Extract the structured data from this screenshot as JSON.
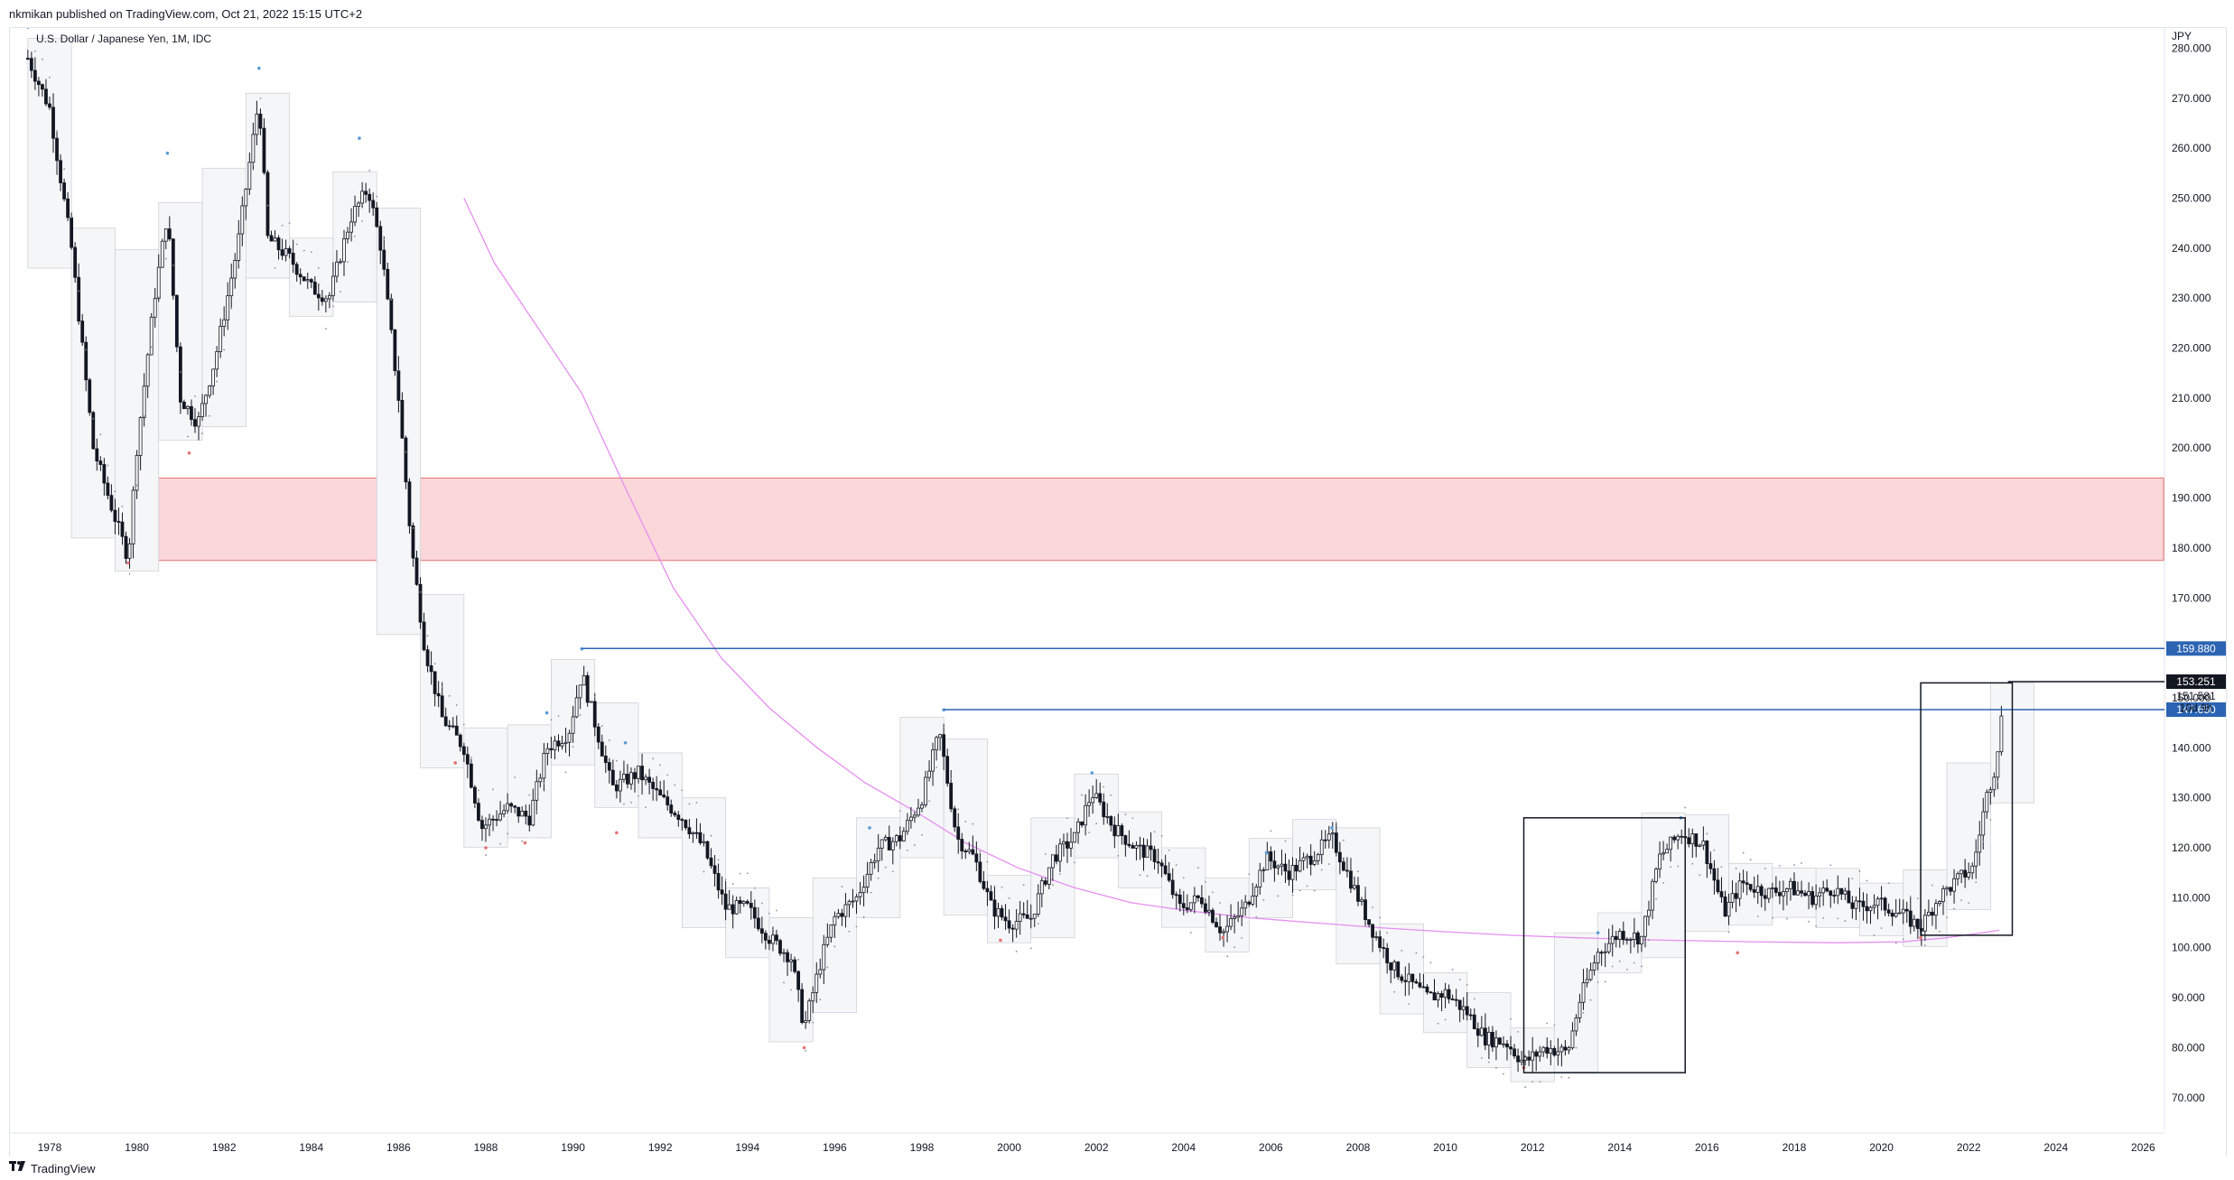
{
  "header": {
    "published": "nkmikan published on TradingView.com, Oct 21, 2022 15:15 UTC+2"
  },
  "chart_data": {
    "type": "candlestick",
    "legend": "U.S. Dollar / Japanese Yen, 1M, IDC",
    "currency": "JPY",
    "xlim": [
      1977.4,
      2026.4
    ],
    "ylim": [
      64,
      282
    ],
    "x_ticks": [
      "1978",
      "1980",
      "1982",
      "1984",
      "1986",
      "1988",
      "1990",
      "1992",
      "1994",
      "1996",
      "1998",
      "2000",
      "2002",
      "2004",
      "2006",
      "2008",
      "2010",
      "2012",
      "2014",
      "2016",
      "2018",
      "2020",
      "2022",
      "2024",
      "2026"
    ],
    "y_ticks": [
      "70.000",
      "80.000",
      "90.000",
      "100.000",
      "110.000",
      "120.000",
      "130.000",
      "140.000",
      "150.000",
      "160.000",
      "170.000",
      "180.000",
      "190.000",
      "200.000",
      "210.000",
      "220.000",
      "230.000",
      "240.000",
      "250.000",
      "260.000",
      "270.000",
      "280.000"
    ],
    "close_path": [
      [
        1977.5,
        278
      ],
      [
        1978.0,
        268
      ],
      [
        1978.5,
        240
      ],
      [
        1979.0,
        200
      ],
      [
        1979.5,
        186
      ],
      [
        1979.8,
        178
      ],
      [
        1980.0,
        200
      ],
      [
        1980.4,
        230
      ],
      [
        1980.7,
        247
      ],
      [
        1981.0,
        210
      ],
      [
        1981.4,
        205
      ],
      [
        1981.8,
        218
      ],
      [
        1982.3,
        240
      ],
      [
        1982.8,
        270
      ],
      [
        1983.0,
        242
      ],
      [
        1983.5,
        238
      ],
      [
        1984.0,
        232
      ],
      [
        1984.4,
        230
      ],
      [
        1984.9,
        246
      ],
      [
        1985.3,
        252
      ],
      [
        1985.6,
        240
      ],
      [
        1986.0,
        210
      ],
      [
        1986.3,
        180
      ],
      [
        1986.6,
        160
      ],
      [
        1987.0,
        146
      ],
      [
        1987.5,
        140
      ],
      [
        1987.9,
        124
      ],
      [
        1988.5,
        128
      ],
      [
        1989.0,
        126
      ],
      [
        1989.4,
        140
      ],
      [
        1989.9,
        143
      ],
      [
        1990.2,
        155
      ],
      [
        1990.5,
        145
      ],
      [
        1990.9,
        132
      ],
      [
        1991.5,
        135
      ],
      [
        1992.0,
        130
      ],
      [
        1992.5,
        126
      ],
      [
        1993.0,
        120
      ],
      [
        1993.5,
        108
      ],
      [
        1994.0,
        108
      ],
      [
        1994.5,
        102
      ],
      [
        1995.0,
        98
      ],
      [
        1995.3,
        84
      ],
      [
        1995.7,
        98
      ],
      [
        1996.0,
        106
      ],
      [
        1996.5,
        110
      ],
      [
        1997.0,
        120
      ],
      [
        1997.5,
        122
      ],
      [
        1998.0,
        130
      ],
      [
        1998.4,
        143
      ],
      [
        1998.8,
        122
      ],
      [
        1999.2,
        118
      ],
      [
        1999.6,
        108
      ],
      [
        2000.0,
        105
      ],
      [
        2000.5,
        106
      ],
      [
        2001.0,
        118
      ],
      [
        2001.5,
        122
      ],
      [
        2001.9,
        131
      ],
      [
        2002.4,
        124
      ],
      [
        2002.9,
        120
      ],
      [
        2003.4,
        118
      ],
      [
        2003.9,
        108
      ],
      [
        2004.4,
        110
      ],
      [
        2004.9,
        103
      ],
      [
        2005.4,
        108
      ],
      [
        2005.9,
        118
      ],
      [
        2006.4,
        115
      ],
      [
        2006.9,
        118
      ],
      [
        2007.4,
        122
      ],
      [
        2007.9,
        112
      ],
      [
        2008.3,
        104
      ],
      [
        2008.8,
        96
      ],
      [
        2009.2,
        93
      ],
      [
        2009.6,
        90
      ],
      [
        2010.0,
        91
      ],
      [
        2010.5,
        87
      ],
      [
        2010.9,
        82
      ],
      [
        2011.4,
        81
      ],
      [
        2011.8,
        77
      ],
      [
        2012.3,
        80
      ],
      [
        2012.8,
        79
      ],
      [
        2013.1,
        90
      ],
      [
        2013.5,
        99
      ],
      [
        2014.0,
        103
      ],
      [
        2014.5,
        102
      ],
      [
        2014.9,
        118
      ],
      [
        2015.4,
        123
      ],
      [
        2015.9,
        121
      ],
      [
        2016.4,
        107
      ],
      [
        2016.8,
        113
      ],
      [
        2017.4,
        111
      ],
      [
        2017.9,
        112
      ],
      [
        2018.4,
        110
      ],
      [
        2018.9,
        112
      ],
      [
        2019.4,
        108
      ],
      [
        2019.9,
        109
      ],
      [
        2020.4,
        107
      ],
      [
        2020.9,
        104
      ],
      [
        2021.3,
        110
      ],
      [
        2021.8,
        114
      ],
      [
        2022.1,
        116
      ],
      [
        2022.4,
        130
      ],
      [
        2022.6,
        136
      ],
      [
        2022.8,
        149
      ]
    ],
    "indicator_line": {
      "color": "#e58ef0",
      "points": [
        [
          1987.5,
          250
        ],
        [
          1988.2,
          237
        ],
        [
          1989.2,
          224
        ],
        [
          1990.2,
          211
        ],
        [
          1991.2,
          192
        ],
        [
          1992.3,
          172
        ],
        [
          1993.4,
          158
        ],
        [
          1994.5,
          148
        ],
        [
          1995.6,
          140
        ],
        [
          1996.7,
          133
        ],
        [
          1997.9,
          127
        ],
        [
          1999.0,
          121
        ],
        [
          2000.2,
          116
        ],
        [
          2001.5,
          112
        ],
        [
          2002.8,
          109
        ],
        [
          2004.0,
          107.5
        ],
        [
          2005.5,
          106
        ],
        [
          2007.0,
          105
        ],
        [
          2008.5,
          104
        ],
        [
          2010.0,
          103.2
        ],
        [
          2011.5,
          102.5
        ],
        [
          2013.0,
          102
        ],
        [
          2015.0,
          101.5
        ],
        [
          2017.0,
          101.2
        ],
        [
          2019.0,
          101
        ],
        [
          2020.5,
          101.2
        ],
        [
          2021.5,
          102
        ],
        [
          2022.7,
          103.5
        ]
      ]
    },
    "zones": [
      {
        "y_from": 177.5,
        "y_to": 194,
        "x_from": 1979.8,
        "fill": "#fbd7d9",
        "stroke": "#e57373"
      }
    ],
    "horizontal_lines": [
      {
        "value": 159.88,
        "x_from": 1990.2,
        "color": "#2c64b3",
        "label": "159.880"
      },
      {
        "value": 147.65,
        "x_from": 1998.5,
        "color": "#2c64b3",
        "label": "147.650"
      }
    ],
    "last_price": {
      "value": 153.251,
      "label": "153.251",
      "sub_label_1": "151.581",
      "sub_label_2": "10d 9h"
    },
    "rectangles": [
      {
        "x_from": 2011.8,
        "x_to": 2015.5,
        "y_from": 75,
        "y_to": 126,
        "color": "#131722"
      },
      {
        "x_from": 2020.9,
        "x_to": 2023.0,
        "y_from": 102.5,
        "y_to": 153,
        "color": "#131722"
      }
    ]
  },
  "footer": {
    "brand": "TradingView"
  }
}
